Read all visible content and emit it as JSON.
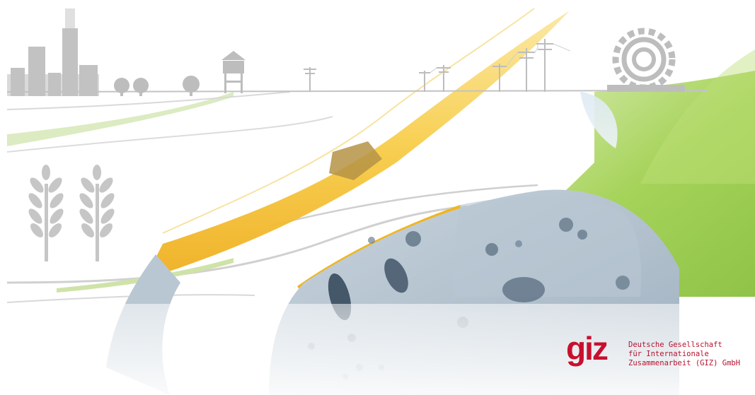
{
  "colors": {
    "brand_red": "#c8102e",
    "illustration_grey": "#bdbdbd",
    "accent_yellow": "#f2b21b",
    "field_green": "#9fcf55",
    "water_blue": "#aabccd"
  },
  "icons": [
    "factory-icon",
    "tree-icon",
    "tree-icon",
    "tree-icon",
    "water-tower-icon",
    "power-pole-icon",
    "power-pole-icon",
    "power-pole-icon",
    "gear-icon",
    "wheat-icon",
    "wheat-icon",
    "water-drop-icon",
    "power-line-icon"
  ],
  "brand": {
    "logo_name": "giz",
    "line1": "Deutsche Gesellschaft",
    "line2": "für Internationale",
    "line3": "Zusammenarbeit (GIZ) GmbH"
  }
}
